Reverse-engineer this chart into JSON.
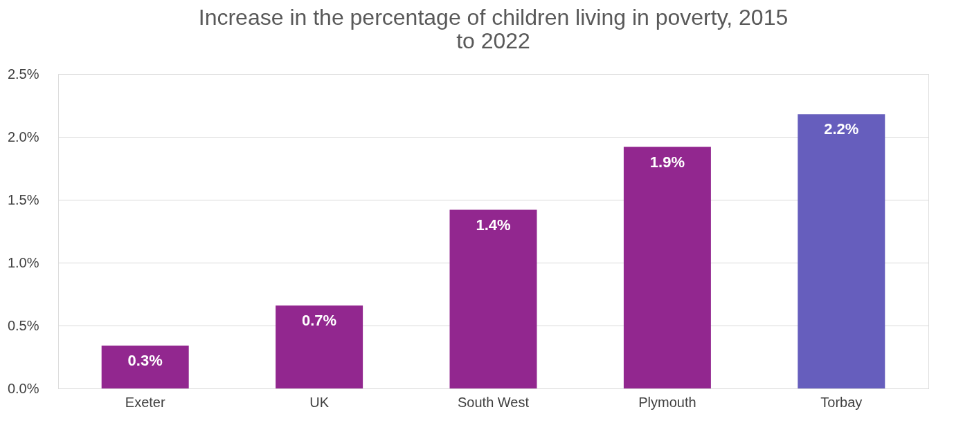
{
  "chart_data": {
    "type": "bar",
    "title": "Increase in the percentage of children living in poverty, 2015 to 2022",
    "categories": [
      "Exeter",
      "UK",
      "South West",
      "Plymouth",
      "Torbay"
    ],
    "values": [
      0.34,
      0.66,
      1.42,
      1.92,
      2.18
    ],
    "value_labels": [
      "0.3%",
      "0.7%",
      "1.4%",
      "1.9%",
      "2.2%"
    ],
    "colors": [
      "#92278f",
      "#92278f",
      "#92278f",
      "#92278f",
      "#665ebd"
    ],
    "ylim": [
      0,
      2.5
    ],
    "yticks": [
      {
        "value": 0,
        "label": "0.0%"
      },
      {
        "value": 0.5,
        "label": "0.5%"
      },
      {
        "value": 1,
        "label": "1.0%"
      },
      {
        "value": 1.5,
        "label": "1.5%"
      },
      {
        "value": 2,
        "label": "2.0%"
      },
      {
        "value": 2.5,
        "label": "2.5%"
      }
    ],
    "grid": "y"
  }
}
